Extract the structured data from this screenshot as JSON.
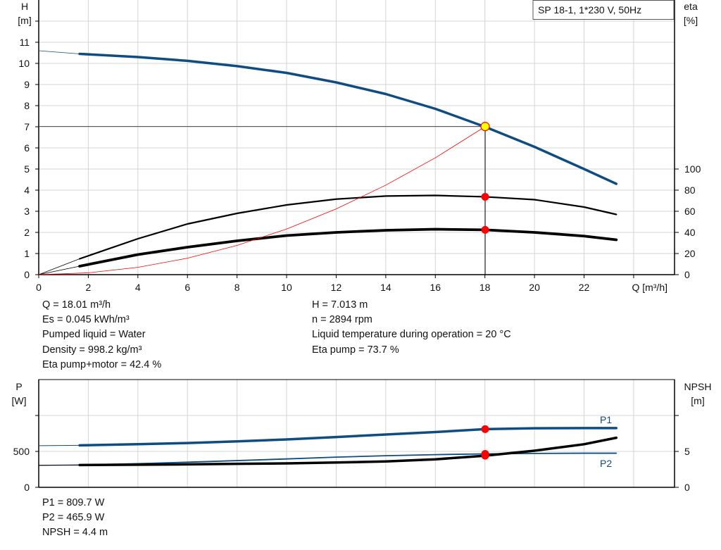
{
  "chart_data": [
    {
      "type": "line",
      "name": "head-efficiency-chart",
      "legend_box": "SP 18-1, 1*230 V, 50Hz",
      "xlabel": "Q [m³/h]",
      "ylabel_left": [
        "H",
        "[m]"
      ],
      "ylabel_right": [
        "eta",
        "[%]"
      ],
      "xlim": [
        0,
        25.65
      ],
      "ylim_left": [
        0,
        13
      ],
      "ylim_right_scale": [
        0,
        260
      ],
      "x_ticks": [
        0,
        2,
        4,
        6,
        8,
        10,
        12,
        14,
        16,
        18,
        20,
        22
      ],
      "y_ticks_left": [
        0,
        1,
        2,
        3,
        4,
        5,
        6,
        7,
        8,
        9,
        10,
        11
      ],
      "y_ticks_right": [
        0,
        20,
        40,
        60,
        80,
        100
      ],
      "grid": true,
      "operating_point": {
        "Q": 18.01,
        "H": 7.013,
        "eta_pump": 73.7,
        "eta_pump_motor": 42.4
      },
      "series": [
        {
          "key": "H",
          "axis": "left",
          "color": "#0f4c81",
          "x": [
            0,
            1.65,
            4,
            6,
            8,
            10,
            12,
            14,
            16,
            18,
            20,
            22,
            23.3
          ],
          "y": [
            10.6,
            10.45,
            10.3,
            10.12,
            9.87,
            9.55,
            9.1,
            8.55,
            7.85,
            7.0,
            6.05,
            5.0,
            4.3
          ]
        },
        {
          "key": "eta_pump",
          "axis": "right",
          "color": "#000000",
          "x": [
            0,
            1.65,
            4,
            6,
            8,
            10,
            12,
            14,
            16,
            18,
            20,
            22,
            23.3
          ],
          "y": [
            0,
            15,
            34,
            48,
            58,
            66,
            71.5,
            74.4,
            75,
            73.7,
            71,
            64,
            57
          ]
        },
        {
          "key": "eta_pump_motor",
          "axis": "right",
          "color": "#000000",
          "x": [
            0,
            1.65,
            4,
            6,
            8,
            10,
            12,
            14,
            16,
            18,
            20,
            22,
            23.3
          ],
          "y": [
            0,
            8,
            19,
            26,
            32,
            37,
            40,
            42,
            43,
            42.4,
            40,
            36.5,
            33
          ]
        },
        {
          "key": "system_curve",
          "axis": "left",
          "color": "#ff0000",
          "x": [
            0,
            2,
            4,
            6,
            8,
            10,
            12,
            14,
            16,
            18
          ],
          "y": [
            0,
            0.086,
            0.346,
            0.778,
            1.383,
            2.16,
            3.111,
            4.235,
            5.531,
            7.0
          ]
        }
      ]
    },
    {
      "type": "line",
      "name": "power-npsh-chart",
      "ylabel_left": [
        "P",
        "[W]"
      ],
      "ylabel_right": [
        "NPSH",
        "[m]"
      ],
      "xlim": [
        0,
        25.65
      ],
      "ylim_left": [
        0,
        1500
      ],
      "ylim_right": [
        0,
        15
      ],
      "y_ticks_left": [
        0,
        500,
        1000
      ],
      "y_tick_labels_left": [
        "0",
        "500",
        ""
      ],
      "y_ticks_right": [
        0,
        5,
        10
      ],
      "y_tick_labels_right": [
        "0",
        "5",
        ""
      ],
      "grid": true,
      "operating_point": {
        "Q": 18.01,
        "P1": 809.7,
        "P2": 465.9,
        "NPSH": 4.4
      },
      "series": [
        {
          "key": "P1",
          "name": "P1",
          "axis": "left",
          "color": "#0f4c81",
          "x": [
            0,
            1.65,
            4,
            6,
            8,
            10,
            12,
            14,
            16,
            18,
            20,
            22,
            23.3
          ],
          "y": [
            580,
            584,
            600,
            617,
            640,
            667,
            700,
            735,
            770,
            809.7,
            822,
            825,
            825
          ]
        },
        {
          "key": "P2",
          "name": "P2",
          "axis": "left",
          "color": "#0f4c81",
          "x": [
            0,
            1.65,
            4,
            6,
            8,
            10,
            12,
            14,
            16,
            18,
            20,
            22,
            23.3
          ],
          "y": [
            307,
            312,
            330,
            350,
            372,
            395,
            420,
            440,
            455,
            465.9,
            472,
            475,
            475
          ]
        },
        {
          "key": "NPSH",
          "axis": "right",
          "color": "#000000",
          "x": [
            0,
            1.65,
            4,
            6,
            8,
            10,
            12,
            14,
            16,
            18,
            20,
            22,
            23.3
          ],
          "y": [
            3.05,
            3.1,
            3.15,
            3.2,
            3.27,
            3.33,
            3.45,
            3.6,
            3.9,
            4.4,
            5.1,
            6.0,
            6.9
          ]
        }
      ]
    }
  ],
  "info_top": {
    "left": [
      "Q = 18.01 m³/h",
      "Es = 0.045 kWh/m³",
      "Pumped liquid = Water",
      "Density = 998.2 kg/m³",
      "Eta pump+motor = 42.4 %"
    ],
    "right": [
      "H = 7.013 m",
      "n = 2894 rpm",
      "Liquid temperature during operation = 20 °C",
      "Eta pump = 73.7 %"
    ]
  },
  "info_bottom": [
    "P1 = 809.7 W",
    "P2 = 465.9 W",
    "NPSH = 4.4 m"
  ]
}
